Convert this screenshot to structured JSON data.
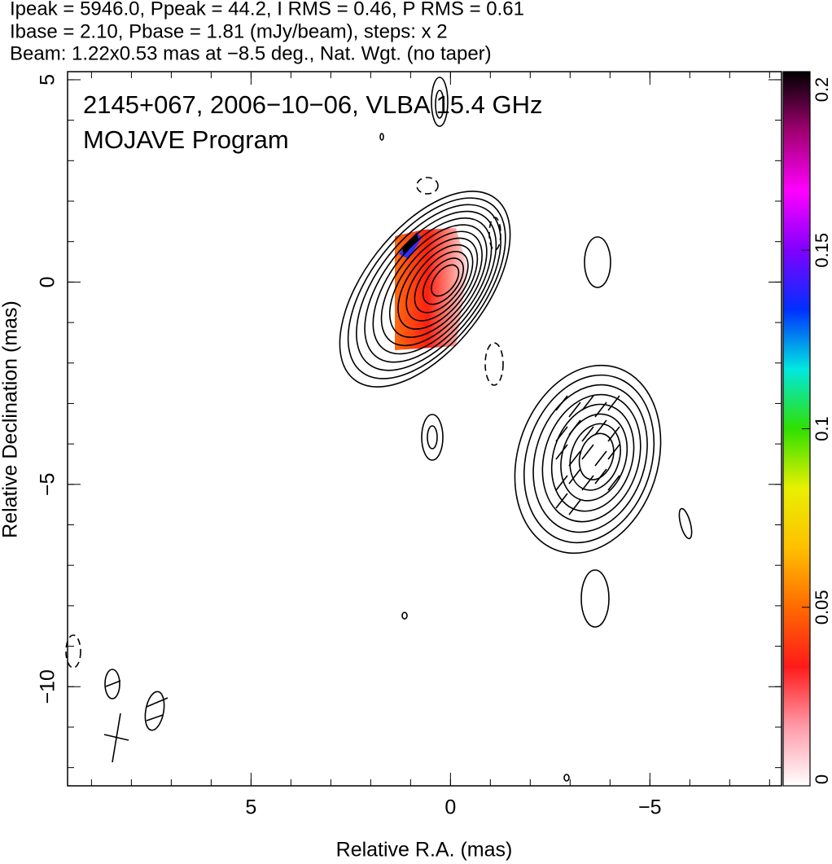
{
  "chart_data": {
    "type": "contour",
    "header": [
      "Ipeak = 5946.0, Ppeak = 44.2, I RMS = 0.46, P RMS = 0.61",
      "Ibase = 2.10, Pbase = 1.81 (mJy/beam), steps: x 2",
      "Beam: 1.22x0.53 mas at −8.5 deg., Nat. Wgt. (no taper)"
    ],
    "annotations": [
      "2145+067, 2006−10−06, VLBA 15.4 GHz",
      "MOJAVE Program"
    ],
    "xlabel": "Relative R.A. (mas)",
    "ylabel": "Relative Declination (mas)",
    "xlim": [
      9.6,
      -8.3
    ],
    "ylim": [
      -12.45,
      5.2
    ],
    "xticks": [
      5,
      0,
      {
        "value": -5,
        "label": "−5"
      }
    ],
    "yticks": [
      5,
      0,
      {
        "value": -5,
        "label": "−5"
      },
      {
        "value": -10,
        "label": "−10"
      }
    ],
    "colorbar": {
      "lim": [
        0,
        0.2
      ],
      "ticks": [
        0,
        0.05,
        0.1,
        0.15,
        0.2
      ],
      "colormap": [
        "#ffffff",
        "#ff9aa8",
        "#ff1a1a",
        "#ff6a00",
        "#ffc000",
        "#e8f000",
        "#30e000",
        "#00e8e0",
        "#0030ff",
        "#8000ff",
        "#ff00ff",
        "#a00070",
        "#000000"
      ]
    }
  }
}
